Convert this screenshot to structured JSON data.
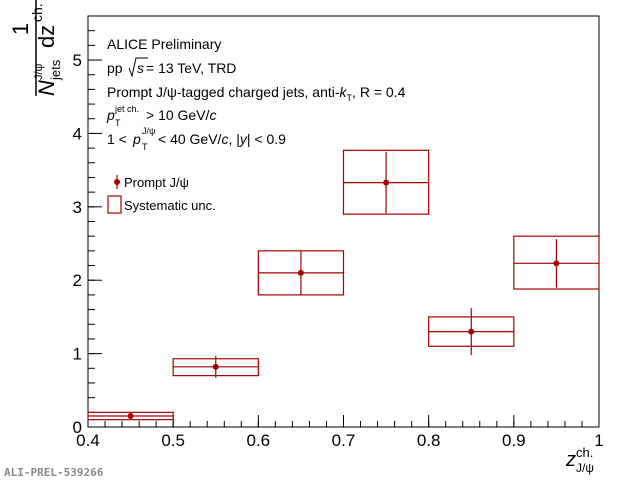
{
  "chart_data": {
    "type": "scatter",
    "title": "",
    "xlabel": "z",
    "xlabel_sup": "ch.",
    "xlabel_sub": "J/ψ",
    "ylabel": {
      "numerator": "1",
      "frac_n": "N",
      "frac_n_sup": "J/ψ",
      "frac_n_sub": "jets",
      "frac_d": "dz",
      "frac_d_sup": "ch.",
      "dN": "dN"
    },
    "xlim": [
      0.4,
      1.0
    ],
    "ylim": [
      0,
      5.6
    ],
    "x_ticks": [
      0.4,
      0.5,
      0.6,
      0.7,
      0.8,
      0.9,
      1.0
    ],
    "x_tick_labels": [
      "0.4",
      "0.5",
      "0.6",
      "0.7",
      "0.8",
      "0.9",
      "1"
    ],
    "y_ticks": [
      0,
      1,
      2,
      3,
      4,
      5
    ],
    "y_tick_labels": [
      "0",
      "1",
      "2",
      "3",
      "4",
      "5"
    ],
    "series": [
      {
        "name": "Prompt J/ψ",
        "color": "#a50000",
        "x": [
          0.45,
          0.55,
          0.65,
          0.75,
          0.85,
          0.95
        ],
        "bin_low": [
          0.4,
          0.5,
          0.6,
          0.7,
          0.8,
          0.9
        ],
        "bin_high": [
          0.5,
          0.6,
          0.7,
          0.8,
          0.9,
          1.0
        ],
        "y": [
          0.15,
          0.82,
          2.1,
          3.33,
          1.3,
          2.23
        ],
        "stat_err": [
          0.05,
          0.15,
          0.3,
          0.42,
          0.32,
          0.33
        ],
        "syst_low": [
          0.1,
          0.7,
          1.8,
          2.9,
          1.1,
          1.88
        ],
        "syst_high": [
          0.2,
          0.93,
          2.4,
          3.77,
          1.5,
          2.6
        ]
      }
    ],
    "legend": {
      "placement": "top-left",
      "entries": [
        {
          "marker": "point",
          "label": "Prompt J/ψ"
        },
        {
          "marker": "box",
          "label": "Systematic unc."
        }
      ]
    },
    "annotations": {
      "line1": "ALICE Preliminary",
      "line2_a": "pp  ",
      "line2_s": "s",
      "line2_b": " = 13 TeV, TRD",
      "line3_a": "Prompt J/ψ-tagged charged jets, anti-",
      "line3_k": "k",
      "line3_ksub": "T",
      "line3_b": ", R = 0.4",
      "line4_p": "p",
      "line4_sup": "jet ch.",
      "line4_sub": "T",
      "line4_b": " > 10 GeV/",
      "line4_c": "c",
      "line5_a": "1 < ",
      "line5_p": "p",
      "line5_sup": "J/ψ",
      "line5_sub": "T",
      "line5_b": " < 40 GeV/",
      "line5_c": "c",
      "line5_d": ", |",
      "line5_y": "y",
      "line5_e": "| < 0.9"
    },
    "grid": false
  },
  "footer": {
    "reference": "ALI-PREL-539266"
  }
}
